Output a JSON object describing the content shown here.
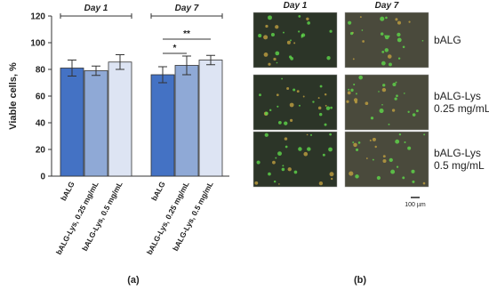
{
  "chart_data": {
    "type": "bar",
    "ylabel": "Viable cells, %",
    "groups": [
      "Day 1",
      "Day 7"
    ],
    "series": [
      {
        "name": "bALG",
        "color": "#4472c4",
        "values": [
          81,
          76
        ],
        "errors": [
          6,
          6
        ]
      },
      {
        "name": "bALG-Lys, 0.25 mg/mL",
        "color": "#8fa9d6",
        "values": [
          79,
          83
        ],
        "errors": [
          3.5,
          7
        ]
      },
      {
        "name": "bALG-Lys, 0.5 mg/mL",
        "color": "#dde4f3",
        "values": [
          85.5,
          87
        ],
        "errors": [
          5.5,
          3.5
        ]
      }
    ],
    "ylim": [
      0,
      120
    ],
    "yticks": [
      0,
      20,
      40,
      60,
      80,
      100,
      120
    ],
    "annotations": [
      "*",
      "**"
    ],
    "panel_label": "(a)"
  },
  "images": {
    "columns": [
      "Day 1",
      "Day 7"
    ],
    "rows": [
      [
        "bALG"
      ],
      [
        "bALG-Lys",
        "0.25 mg/mL"
      ],
      [
        "bALG-Lys",
        "0.5 mg/mL"
      ]
    ],
    "scale_bar": "100 µm",
    "panel_label": "(b)"
  }
}
